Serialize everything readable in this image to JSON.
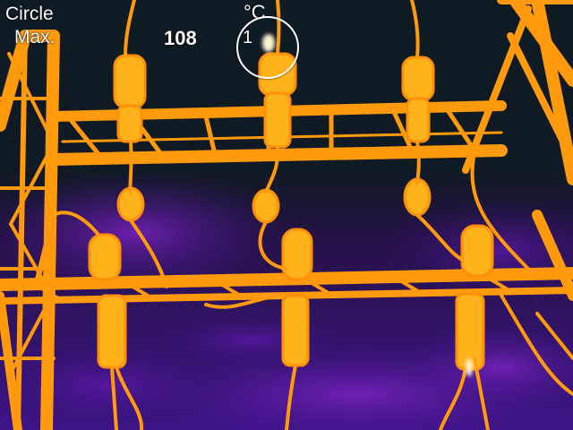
{
  "hud": {
    "measure_label_line1": "Circle",
    "measure_label_line2": "Max.",
    "max_value": "108",
    "unit": "°C",
    "circle_index": "1"
  },
  "palette": {
    "background": "#0f1b22",
    "sky_purple": "#3a1380",
    "sky_violet": "#6a1fb0",
    "hot_orange": "#ff9a0c",
    "hot_yellow": "#ffc21a",
    "hottest": "#fff2d0"
  }
}
